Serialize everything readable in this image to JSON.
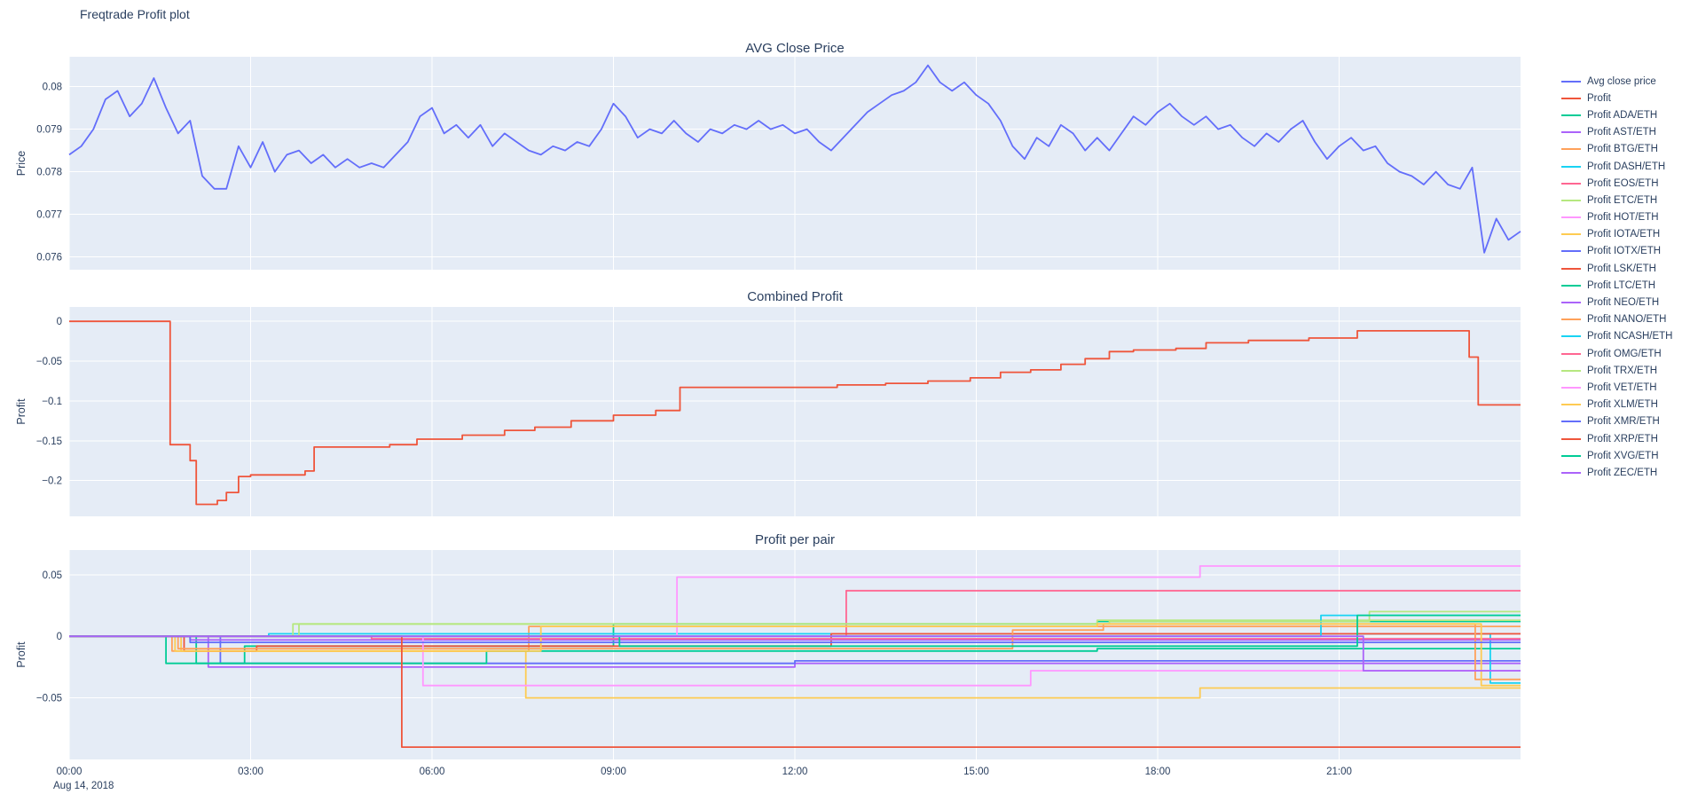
{
  "figure": {
    "title": "Freqtrade Profit plot"
  },
  "colors": {
    "background": "#ffffff",
    "plot_bg": "#e5ecf6",
    "grid": "#ffffff",
    "text": "#2a3f5f"
  },
  "x_axis": {
    "range": [
      0,
      24
    ],
    "ticks": [
      0,
      3,
      6,
      9,
      12,
      15,
      18,
      21
    ],
    "tick_labels": [
      "00:00",
      "03:00",
      "06:00",
      "09:00",
      "12:00",
      "15:00",
      "18:00",
      "21:00"
    ],
    "date_label": "Aug 14, 2018"
  },
  "legend": {
    "entries": [
      {
        "label": "Avg close price",
        "color": "#636efa"
      },
      {
        "label": "Profit",
        "color": "#EF553B"
      },
      {
        "label": "Profit ADA/ETH",
        "color": "#00cc96"
      },
      {
        "label": "Profit AST/ETH",
        "color": "#ab63fa"
      },
      {
        "label": "Profit BTG/ETH",
        "color": "#FFA15A"
      },
      {
        "label": "Profit DASH/ETH",
        "color": "#19d3f3"
      },
      {
        "label": "Profit EOS/ETH",
        "color": "#FF6692"
      },
      {
        "label": "Profit ETC/ETH",
        "color": "#B6E880"
      },
      {
        "label": "Profit HOT/ETH",
        "color": "#FF97FF"
      },
      {
        "label": "Profit IOTA/ETH",
        "color": "#FECB52"
      },
      {
        "label": "Profit IOTX/ETH",
        "color": "#636efa"
      },
      {
        "label": "Profit LSK/ETH",
        "color": "#EF553B"
      },
      {
        "label": "Profit LTC/ETH",
        "color": "#00cc96"
      },
      {
        "label": "Profit NEO/ETH",
        "color": "#ab63fa"
      },
      {
        "label": "Profit NANO/ETH",
        "color": "#FFA15A"
      },
      {
        "label": "Profit NCASH/ETH",
        "color": "#19d3f3"
      },
      {
        "label": "Profit OMG/ETH",
        "color": "#FF6692"
      },
      {
        "label": "Profit TRX/ETH",
        "color": "#B6E880"
      },
      {
        "label": "Profit VET/ETH",
        "color": "#FF97FF"
      },
      {
        "label": "Profit XLM/ETH",
        "color": "#FECB52"
      },
      {
        "label": "Profit XMR/ETH",
        "color": "#636efa"
      },
      {
        "label": "Profit XRP/ETH",
        "color": "#EF553B"
      },
      {
        "label": "Profit XVG/ETH",
        "color": "#00cc96"
      },
      {
        "label": "Profit ZEC/ETH",
        "color": "#ab63fa"
      }
    ]
  },
  "chart_data": [
    {
      "id": "avg-close-price",
      "type": "line",
      "title": "AVG Close Price",
      "ylabel": "Price",
      "ylim": [
        0.0757,
        0.0807
      ],
      "yticks": [
        0.076,
        0.077,
        0.078,
        0.079,
        0.08
      ],
      "ytick_labels": [
        "0.076",
        "0.077",
        "0.078",
        "0.079",
        "0.08"
      ],
      "show_x_labels": false,
      "series": [
        {
          "name": "Avg close price",
          "color": "#636efa",
          "x0": 0,
          "dx": 0.2,
          "y": [
            0.0784,
            0.0786,
            0.079,
            0.0797,
            0.0799,
            0.0793,
            0.0796,
            0.0802,
            0.0795,
            0.0789,
            0.0792,
            0.0779,
            0.0776,
            0.0776,
            0.0786,
            0.0781,
            0.0787,
            0.078,
            0.0784,
            0.0785,
            0.0782,
            0.0784,
            0.0781,
            0.0783,
            0.0781,
            0.0782,
            0.0781,
            0.0784,
            0.0787,
            0.0793,
            0.0795,
            0.0789,
            0.0791,
            0.0788,
            0.0791,
            0.0786,
            0.0789,
            0.0787,
            0.0785,
            0.0784,
            0.0786,
            0.0785,
            0.0787,
            0.0786,
            0.079,
            0.0796,
            0.0793,
            0.0788,
            0.079,
            0.0789,
            0.0792,
            0.0789,
            0.0787,
            0.079,
            0.0789,
            0.0791,
            0.079,
            0.0792,
            0.079,
            0.0791,
            0.0789,
            0.079,
            0.0787,
            0.0785,
            0.0788,
            0.0791,
            0.0794,
            0.0796,
            0.0798,
            0.0799,
            0.0801,
            0.0805,
            0.0801,
            0.0799,
            0.0801,
            0.0798,
            0.0796,
            0.0792,
            0.0786,
            0.0783,
            0.0788,
            0.0786,
            0.0791,
            0.0789,
            0.0785,
            0.0788,
            0.0785,
            0.0789,
            0.0793,
            0.0791,
            0.0794,
            0.0796,
            0.0793,
            0.0791,
            0.0793,
            0.079,
            0.0791,
            0.0788,
            0.0786,
            0.0789,
            0.0787,
            0.079,
            0.0792,
            0.0787,
            0.0783,
            0.0786,
            0.0788,
            0.0785,
            0.0786,
            0.0782,
            0.078,
            0.0779,
            0.0777,
            0.078,
            0.0777,
            0.0776,
            0.0781,
            0.0761,
            0.0769,
            0.0764,
            0.0766
          ]
        }
      ]
    },
    {
      "id": "combined-profit",
      "type": "step",
      "title": "Combined Profit",
      "ylabel": "Profit",
      "ylim": [
        -0.245,
        0.018
      ],
      "yticks": [
        0,
        -0.05,
        -0.1,
        -0.15,
        -0.2
      ],
      "ytick_labels": [
        "0",
        "−0.05",
        "−0.1",
        "−0.15",
        "−0.2"
      ],
      "show_x_labels": false,
      "series": [
        {
          "name": "Profit",
          "color": "#EF553B",
          "x": [
            0,
            1.67,
            2.0,
            2.1,
            2.45,
            2.6,
            2.8,
            3.0,
            3.9,
            4.05,
            5.3,
            5.75,
            6.5,
            7.2,
            7.7,
            8.3,
            9.0,
            9.7,
            10.1,
            12.7,
            13.5,
            14.2,
            14.9,
            15.4,
            15.9,
            16.4,
            16.8,
            17.2,
            17.6,
            18.3,
            18.8,
            19.5,
            20.5,
            21.3,
            23.15,
            23.3,
            24
          ],
          "y": [
            0,
            -0.155,
            -0.175,
            -0.23,
            -0.225,
            -0.215,
            -0.195,
            -0.193,
            -0.188,
            -0.158,
            -0.155,
            -0.148,
            -0.143,
            -0.137,
            -0.133,
            -0.125,
            -0.118,
            -0.112,
            -0.083,
            -0.08,
            -0.078,
            -0.075,
            -0.071,
            -0.064,
            -0.061,
            -0.054,
            -0.047,
            -0.038,
            -0.036,
            -0.034,
            -0.027,
            -0.024,
            -0.021,
            -0.012,
            -0.045,
            -0.105,
            -0.105
          ]
        }
      ]
    },
    {
      "id": "profit-per-pair",
      "type": "step",
      "title": "Profit per pair",
      "ylabel": "Profit",
      "ylim": [
        -0.1,
        0.07
      ],
      "yticks": [
        0.05,
        0,
        -0.05
      ],
      "ytick_labels": [
        "0.05",
        "0",
        "−0.05"
      ],
      "show_x_labels": true,
      "series": [
        {
          "name": "Profit ADA/ETH",
          "color": "#00cc96",
          "x": [
            0,
            1.6,
            2.9,
            9.0,
            17.0,
            24
          ],
          "y": [
            0,
            -0.022,
            -0.008,
            0.01,
            0.012,
            0.012
          ]
        },
        {
          "name": "Profit AST/ETH",
          "color": "#ab63fa",
          "x": [
            0,
            2.3,
            12.0,
            24
          ],
          "y": [
            0,
            -0.025,
            -0.022,
            -0.022
          ]
        },
        {
          "name": "Profit BTG/ETH",
          "color": "#FFA15A",
          "x": [
            0,
            1.7,
            7.6,
            24
          ],
          "y": [
            0,
            -0.012,
            0.008,
            0.008
          ]
        },
        {
          "name": "Profit DASH/ETH",
          "color": "#19d3f3",
          "x": [
            0,
            3.3,
            23.5,
            24
          ],
          "y": [
            0,
            0.002,
            -0.038,
            -0.038
          ]
        },
        {
          "name": "Profit EOS/ETH",
          "color": "#FF6692",
          "x": [
            0,
            12.85,
            24
          ],
          "y": [
            0,
            0.037,
            0.037
          ]
        },
        {
          "name": "Profit ETC/ETH",
          "color": "#B6E880",
          "x": [
            0,
            3.7,
            17.0,
            24
          ],
          "y": [
            0,
            0.01,
            0.013,
            0.013
          ]
        },
        {
          "name": "Profit HOT/ETH",
          "color": "#FF97FF",
          "x": [
            0,
            10.05,
            18.7,
            24
          ],
          "y": [
            0,
            0.048,
            0.057,
            0.057
          ]
        },
        {
          "name": "Profit IOTA/ETH",
          "color": "#FECB52",
          "x": [
            0,
            1.85,
            7.55,
            18.7,
            24
          ],
          "y": [
            0,
            -0.012,
            -0.05,
            -0.042,
            -0.042
          ]
        },
        {
          "name": "Profit IOTX/ETH",
          "color": "#636efa",
          "x": [
            0,
            2.5,
            12.0,
            24
          ],
          "y": [
            0,
            -0.022,
            -0.02,
            -0.02
          ]
        },
        {
          "name": "Profit LSK/ETH",
          "color": "#EF553B",
          "x": [
            0,
            1.9,
            3.1,
            12.6,
            24
          ],
          "y": [
            0,
            -0.012,
            -0.008,
            0.002,
            0.002
          ]
        },
        {
          "name": "Profit LTC/ETH",
          "color": "#00cc96",
          "x": [
            0,
            2.1,
            6.9,
            17.0,
            24
          ],
          "y": [
            0,
            -0.022,
            -0.012,
            -0.01,
            -0.01
          ]
        },
        {
          "name": "Profit NEO/ETH",
          "color": "#ab63fa",
          "x": [
            0,
            2.0,
            24
          ],
          "y": [
            0,
            -0.003,
            -0.003
          ]
        },
        {
          "name": "Profit NANO/ETH",
          "color": "#FFA15A",
          "x": [
            0,
            1.8,
            15.6,
            17.1,
            23.25,
            24
          ],
          "y": [
            0,
            -0.01,
            0.005,
            0.01,
            -0.035,
            -0.035
          ]
        },
        {
          "name": "Profit NCASH/ETH",
          "color": "#19d3f3",
          "x": [
            0,
            20.7,
            24
          ],
          "y": [
            0,
            0.017,
            0.017
          ]
        },
        {
          "name": "Profit OMG/ETH",
          "color": "#FF6692",
          "x": [
            0,
            5.0,
            24
          ],
          "y": [
            0,
            -0.002,
            -0.002
          ]
        },
        {
          "name": "Profit TRX/ETH",
          "color": "#B6E880",
          "x": [
            0,
            3.8,
            17.2,
            21.5,
            24
          ],
          "y": [
            0,
            0.01,
            0.012,
            0.02,
            0.02
          ]
        },
        {
          "name": "Profit VET/ETH",
          "color": "#FF97FF",
          "x": [
            0,
            5.85,
            15.9,
            24
          ],
          "y": [
            0,
            -0.04,
            -0.028,
            -0.028
          ]
        },
        {
          "name": "Profit XLM/ETH",
          "color": "#FECB52",
          "x": [
            0,
            1.75,
            7.8,
            17.0,
            23.35,
            24
          ],
          "y": [
            0,
            -0.012,
            0.008,
            0.01,
            -0.04,
            -0.04
          ]
        },
        {
          "name": "Profit XMR/ETH",
          "color": "#636efa",
          "x": [
            0,
            2.0,
            24
          ],
          "y": [
            0,
            -0.005,
            -0.005
          ]
        },
        {
          "name": "Profit XRP/ETH",
          "color": "#EF553B",
          "x": [
            0,
            5.5,
            24
          ],
          "y": [
            0,
            -0.09,
            -0.09
          ]
        },
        {
          "name": "Profit XVG/ETH",
          "color": "#00cc96",
          "x": [
            0,
            9.1,
            21.3,
            24
          ],
          "y": [
            0,
            -0.008,
            0.017,
            0.017
          ]
        },
        {
          "name": "Profit ZEC/ETH",
          "color": "#ab63fa",
          "x": [
            0,
            21.4,
            24
          ],
          "y": [
            0,
            -0.028,
            -0.028
          ]
        }
      ]
    }
  ]
}
